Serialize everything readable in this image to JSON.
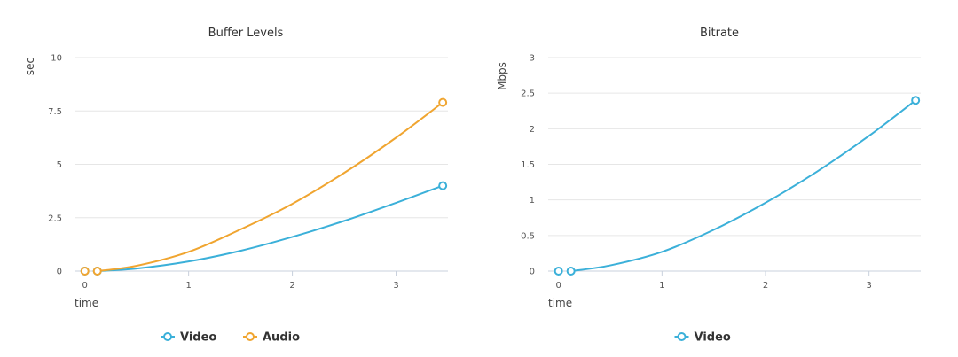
{
  "chart_data": [
    {
      "type": "line",
      "title": "Buffer Levels",
      "xlabel": "time",
      "ylabel": "sec",
      "xlim": [
        -0.1,
        3.5
      ],
      "ylim": [
        0,
        10
      ],
      "xticks": [
        0,
        1,
        2,
        3
      ],
      "yticks": [
        0,
        2.5,
        5,
        7.5,
        10
      ],
      "xtick_labels": [
        "0",
        "1",
        "2",
        "3"
      ],
      "ytick_labels": [
        "0",
        "2.5",
        "5",
        "7.5",
        "10"
      ],
      "grid": true,
      "legend": "bottom-center",
      "series": [
        {
          "name": "Video",
          "color": "#3bb0d9",
          "curve": [
            [
              0.12,
              0
            ],
            [
              0.5,
              0.12
            ],
            [
              1,
              0.45
            ],
            [
              1.5,
              0.95
            ],
            [
              2,
              1.6
            ],
            [
              2.5,
              2.35
            ],
            [
              3,
              3.2
            ],
            [
              3.45,
              4.0
            ]
          ],
          "points": [
            [
              0,
              0
            ],
            [
              0.12,
              0
            ],
            [
              3.45,
              4.0
            ]
          ]
        },
        {
          "name": "Audio",
          "color": "#f0a530",
          "curve": [
            [
              0.12,
              0
            ],
            [
              0.5,
              0.25
            ],
            [
              1,
              0.9
            ],
            [
              1.5,
              1.95
            ],
            [
              2,
              3.15
            ],
            [
              2.5,
              4.6
            ],
            [
              3,
              6.25
            ],
            [
              3.45,
              7.9
            ]
          ],
          "points": [
            [
              0,
              0
            ],
            [
              0.12,
              0
            ],
            [
              3.45,
              7.9
            ]
          ]
        }
      ]
    },
    {
      "type": "line",
      "title": "Bitrate",
      "xlabel": "time",
      "ylabel": "Mbps",
      "xlim": [
        -0.1,
        3.5
      ],
      "ylim": [
        0,
        3
      ],
      "xticks": [
        0,
        1,
        2,
        3
      ],
      "yticks": [
        0,
        0.5,
        1,
        1.5,
        2,
        2.5,
        3
      ],
      "xtick_labels": [
        "0",
        "1",
        "2",
        "3"
      ],
      "ytick_labels": [
        "0",
        "0.5",
        "1",
        "1.5",
        "2",
        "2.5",
        "3"
      ],
      "grid": true,
      "legend": "bottom-center",
      "series": [
        {
          "name": "Video",
          "color": "#3bb0d9",
          "curve": [
            [
              0.12,
              0
            ],
            [
              0.5,
              0.08
            ],
            [
              1,
              0.27
            ],
            [
              1.5,
              0.58
            ],
            [
              2,
              0.96
            ],
            [
              2.5,
              1.4
            ],
            [
              3,
              1.9
            ],
            [
              3.45,
              2.4
            ]
          ],
          "points": [
            [
              0,
              0
            ],
            [
              0.12,
              0
            ],
            [
              3.45,
              2.4
            ]
          ]
        }
      ]
    }
  ]
}
